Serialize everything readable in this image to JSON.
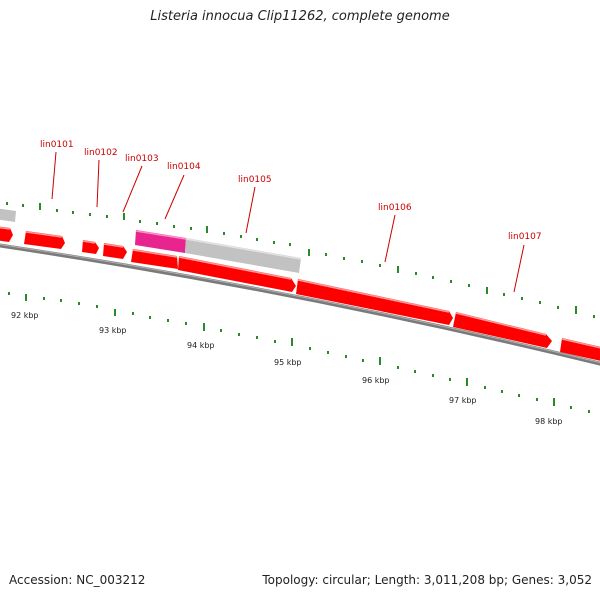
{
  "title": "Listeria innocua Clip11262, complete genome",
  "footer": {
    "accession": "Accession: NC_003212",
    "topology": "Topology: circular; Length: 3,011,208 bp; Genes: 3,052"
  },
  "colors": {
    "gene": "#ff0000",
    "gene_highlight": "#ff9a9a",
    "gene_dark": "#c40000",
    "rna": "#e8248f",
    "pseudo": "#c2c2c2",
    "backbone": "#808080",
    "tick": "#2a8a2a",
    "locus_label": "#cc0000"
  },
  "locus_tags": [
    "lin0101",
    "lin0102",
    "lin0103",
    "lin0104",
    "lin0105",
    "lin0106",
    "lin0107"
  ],
  "scale_labels": [
    "92 kbp",
    "93 kbp",
    "94 kbp",
    "95 kbp",
    "96 kbp",
    "97 kbp",
    "98 kbp"
  ]
}
